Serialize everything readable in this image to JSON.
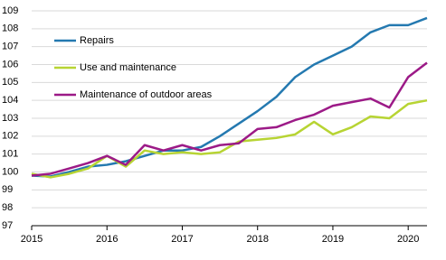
{
  "chart_data": {
    "type": "line",
    "x": [
      2015,
      2015.25,
      2015.5,
      2015.75,
      2016,
      2016.25,
      2016.5,
      2016.75,
      2017,
      2017.25,
      2017.5,
      2017.75,
      2018,
      2018.25,
      2018.5,
      2018.75,
      2019,
      2019.25,
      2019.5,
      2019.75,
      2020,
      2020.25
    ],
    "series": [
      {
        "name": "Repairs",
        "color": "#2479b0",
        "values": [
          99.8,
          99.75,
          100.0,
          100.3,
          100.4,
          100.6,
          100.9,
          101.2,
          101.2,
          101.4,
          102.0,
          102.7,
          103.4,
          104.2,
          105.3,
          106.0,
          106.5,
          107.0,
          107.8,
          108.2,
          108.2,
          108.6
        ]
      },
      {
        "name": "Use and maintenance",
        "color": "#b7d433",
        "values": [
          99.9,
          99.7,
          99.9,
          100.2,
          100.9,
          100.3,
          101.2,
          101.0,
          101.1,
          101.0,
          101.1,
          101.7,
          101.8,
          101.9,
          102.1,
          102.8,
          102.1,
          102.5,
          103.1,
          103.0,
          103.8,
          104.0
        ]
      },
      {
        "name": "Maintenance of outdoor areas",
        "color": "#9c1a87",
        "values": [
          99.8,
          99.9,
          100.2,
          100.5,
          100.9,
          100.4,
          101.5,
          101.2,
          101.5,
          101.2,
          101.5,
          101.6,
          102.4,
          102.5,
          102.9,
          103.2,
          103.7,
          103.9,
          104.1,
          103.6,
          105.3,
          106.1
        ]
      }
    ],
    "xlim": [
      2015,
      2020.25
    ],
    "xticks": [
      2015,
      2016,
      2017,
      2018,
      2019,
      2020
    ],
    "ylim": [
      97,
      109
    ],
    "yticks": [
      97,
      98,
      99,
      100,
      101,
      102,
      103,
      104,
      105,
      106,
      107,
      108,
      109
    ],
    "grid": true,
    "legend": "upper left"
  }
}
